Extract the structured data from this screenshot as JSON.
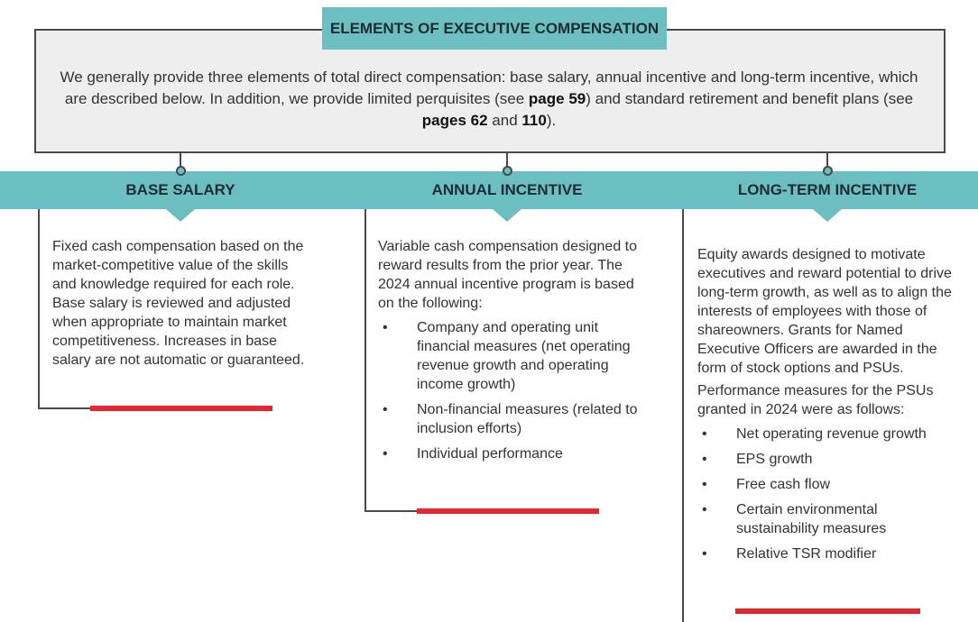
{
  "title": "ELEMENTS OF EXECUTIVE COMPENSATION",
  "intro": [
    "We generally provide three elements of total direct compensation: base salary, annual incentive and long-term incentive, which are described below. In addition, we provide limited perquisites (see ",
    "page 59",
    ") and standard retirement and benefit plans (see ",
    "pages 62",
    " and ",
    "110",
    ")."
  ],
  "columns": [
    {
      "heading": "BASE SALARY",
      "paragraphs": [
        "Fixed cash compensation based on the market-competitive value of the skills and knowledge required for each role. Base salary is reviewed and adjusted when appropriate to maintain market competitiveness. Increases in base salary are not automatic or guaranteed."
      ],
      "bullets": []
    },
    {
      "heading": "ANNUAL INCENTIVE",
      "paragraphs": [
        "Variable cash compensation designed to reward results from the prior year. The 2024 annual incentive program is based on the following:"
      ],
      "bullets": [
        "Company and operating unit financial measures (net operating revenue growth and operating income growth)",
        "Non-financial measures (related to inclusion efforts)",
        "Individual performance"
      ]
    },
    {
      "heading": "LONG-TERM INCENTIVE",
      "paragraphs": [
        "Equity awards designed to motivate executives and reward potential to drive long-term growth, as well as to align the interests of employees with those of shareowners. Grants for Named Executive Officers are awarded in the form of stock options and PSUs.",
        "Performance measures for the PSUs granted in 2024 were as follows:"
      ],
      "bullets": [
        "Net operating revenue growth",
        "EPS growth",
        "Free cash flow",
        "Certain environmental sustainability measures",
        "Relative TSR modifier"
      ]
    }
  ]
}
